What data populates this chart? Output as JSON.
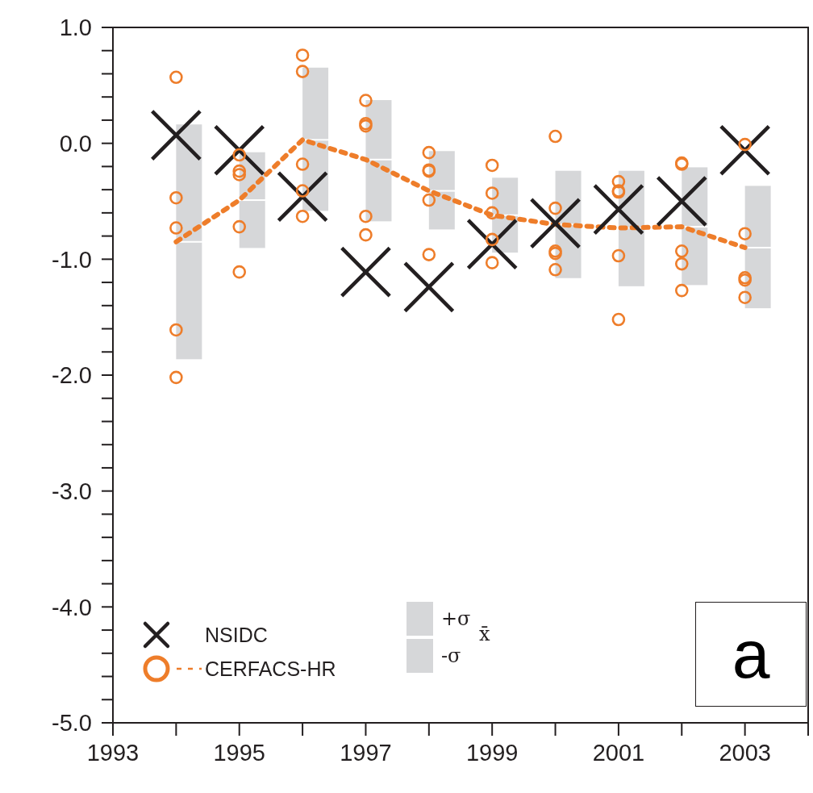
{
  "chart_data": {
    "type": "line",
    "x": [
      1994,
      1995,
      1996,
      1997,
      1998,
      1999,
      2000,
      2001,
      2002,
      2003
    ],
    "series": [
      {
        "name": "NSIDC",
        "type": "scatter",
        "marker": "cross",
        "color": "#231f20",
        "values": [
          0.07,
          -0.06,
          -0.46,
          -1.11,
          -1.24,
          -0.87,
          -0.69,
          -0.57,
          -0.5,
          -0.06
        ]
      },
      {
        "name": "CERFACS-HR",
        "type": "scatter",
        "marker": "circle",
        "color": "#ee7d2a",
        "x": [
          1994,
          1994,
          1994,
          1994,
          1994,
          1995,
          1995,
          1995,
          1995,
          1995,
          1996,
          1996,
          1996,
          1996,
          1996,
          1997,
          1997,
          1997,
          1997,
          1997,
          1998,
          1998,
          1998,
          1998,
          1998,
          1999,
          1999,
          1999,
          1999,
          1999,
          2000,
          2000,
          2000,
          2000,
          2000,
          2001,
          2001,
          2001,
          2001,
          2001,
          2002,
          2002,
          2002,
          2002,
          2002,
          2003,
          2003,
          2003,
          2003,
          2003
        ],
        "values": [
          0.57,
          -0.47,
          -0.73,
          -1.61,
          -2.02,
          -0.1,
          -0.24,
          -0.27,
          -0.72,
          -1.11,
          0.76,
          0.62,
          -0.18,
          -0.41,
          -0.63,
          0.37,
          0.17,
          0.15,
          -0.63,
          -0.79,
          -0.08,
          -0.23,
          -0.24,
          -0.49,
          -0.96,
          -0.19,
          -0.43,
          -0.6,
          -0.83,
          -1.03,
          0.06,
          -0.56,
          -0.93,
          -0.95,
          -1.09,
          -0.33,
          -0.41,
          -0.42,
          -0.97,
          -1.52,
          -0.17,
          -0.18,
          -0.93,
          -1.04,
          -1.27,
          -0.01,
          -0.78,
          -1.16,
          -1.18,
          -1.33
        ]
      },
      {
        "marker": "none",
        "line_style": "dashed",
        "color": "#ee7d2a",
        "values": [
          -0.85,
          -0.49,
          0.03,
          -0.14,
          -0.41,
          -0.62,
          -0.7,
          -0.73,
          -0.72,
          -0.9
        ]
      },
      {
        "name": "+σ",
        "type": "bar",
        "color": "#d6d7d9",
        "base": [
          -0.85,
          -0.49,
          0.03,
          -0.14,
          -0.41,
          -0.62,
          -0.7,
          -0.73,
          -0.72,
          -0.9
        ],
        "values": [
          1.02,
          0.42,
          0.63,
          0.52,
          0.35,
          0.33,
          0.47,
          0.5,
          0.52,
          0.54
        ]
      },
      {
        "name": "-σ",
        "type": "bar",
        "color": "#d6d7d9",
        "base": [
          -1.87,
          -0.91,
          -0.59,
          -0.68,
          -0.75,
          -0.95,
          -1.17,
          -1.24,
          -1.23,
          -1.43
        ],
        "values": [
          1.02,
          0.42,
          0.62,
          0.54,
          0.34,
          0.33,
          0.47,
          0.51,
          0.51,
          0.53
        ]
      }
    ],
    "xlim": [
      1993,
      2004
    ],
    "xticks": [
      1993,
      {
        "value": 1994,
        "label": null
      },
      1995,
      {
        "value": 1996,
        "label": null
      },
      1997,
      {
        "value": 1998,
        "label": null
      },
      1999,
      {
        "value": 2000,
        "label": null
      },
      2001,
      {
        "value": 2002,
        "label": null
      },
      2003,
      {
        "value": 2004,
        "label": null
      }
    ],
    "ylim": [
      -5,
      1
    ],
    "yticks": [
      {
        "value": -5,
        "label": "-5.0"
      },
      {
        "value": -4.8,
        "label": null
      },
      {
        "value": -4.6,
        "label": null
      },
      {
        "value": -4.4,
        "label": null
      },
      {
        "value": -4.2,
        "label": null
      },
      {
        "value": -4,
        "label": "-4.0"
      },
      {
        "value": -3.8,
        "label": null
      },
      {
        "value": -3.6,
        "label": null
      },
      {
        "value": -3.4,
        "label": null
      },
      {
        "value": -3.2,
        "label": null
      },
      {
        "value": -3,
        "label": "-3.0"
      },
      {
        "value": -2.8,
        "label": null
      },
      {
        "value": -2.6,
        "label": null
      },
      {
        "value": -2.4,
        "label": null
      },
      {
        "value": -2.2,
        "label": null
      },
      {
        "value": -2,
        "label": "-2.0"
      },
      {
        "value": -1.8,
        "label": null
      },
      {
        "value": -1.6,
        "label": null
      },
      {
        "value": -1.4,
        "label": null
      },
      {
        "value": -1.2,
        "label": null
      },
      {
        "value": -1,
        "label": "-1.0"
      },
      {
        "value": -0.8,
        "label": null
      },
      {
        "value": -0.6,
        "label": null
      },
      {
        "value": -0.4,
        "label": null
      },
      {
        "value": -0.2,
        "label": null
      },
      {
        "value": 0,
        "label": "0.0"
      },
      {
        "value": 0.2,
        "label": null
      },
      {
        "value": 0.4,
        "label": null
      },
      {
        "value": 0.6,
        "label": null
      },
      {
        "value": 0.8,
        "label": null
      },
      {
        "value": 1,
        "label": "1.0"
      }
    ],
    "legend": "bottom left",
    "annotations": [
      "x̄",
      "a"
    ]
  }
}
